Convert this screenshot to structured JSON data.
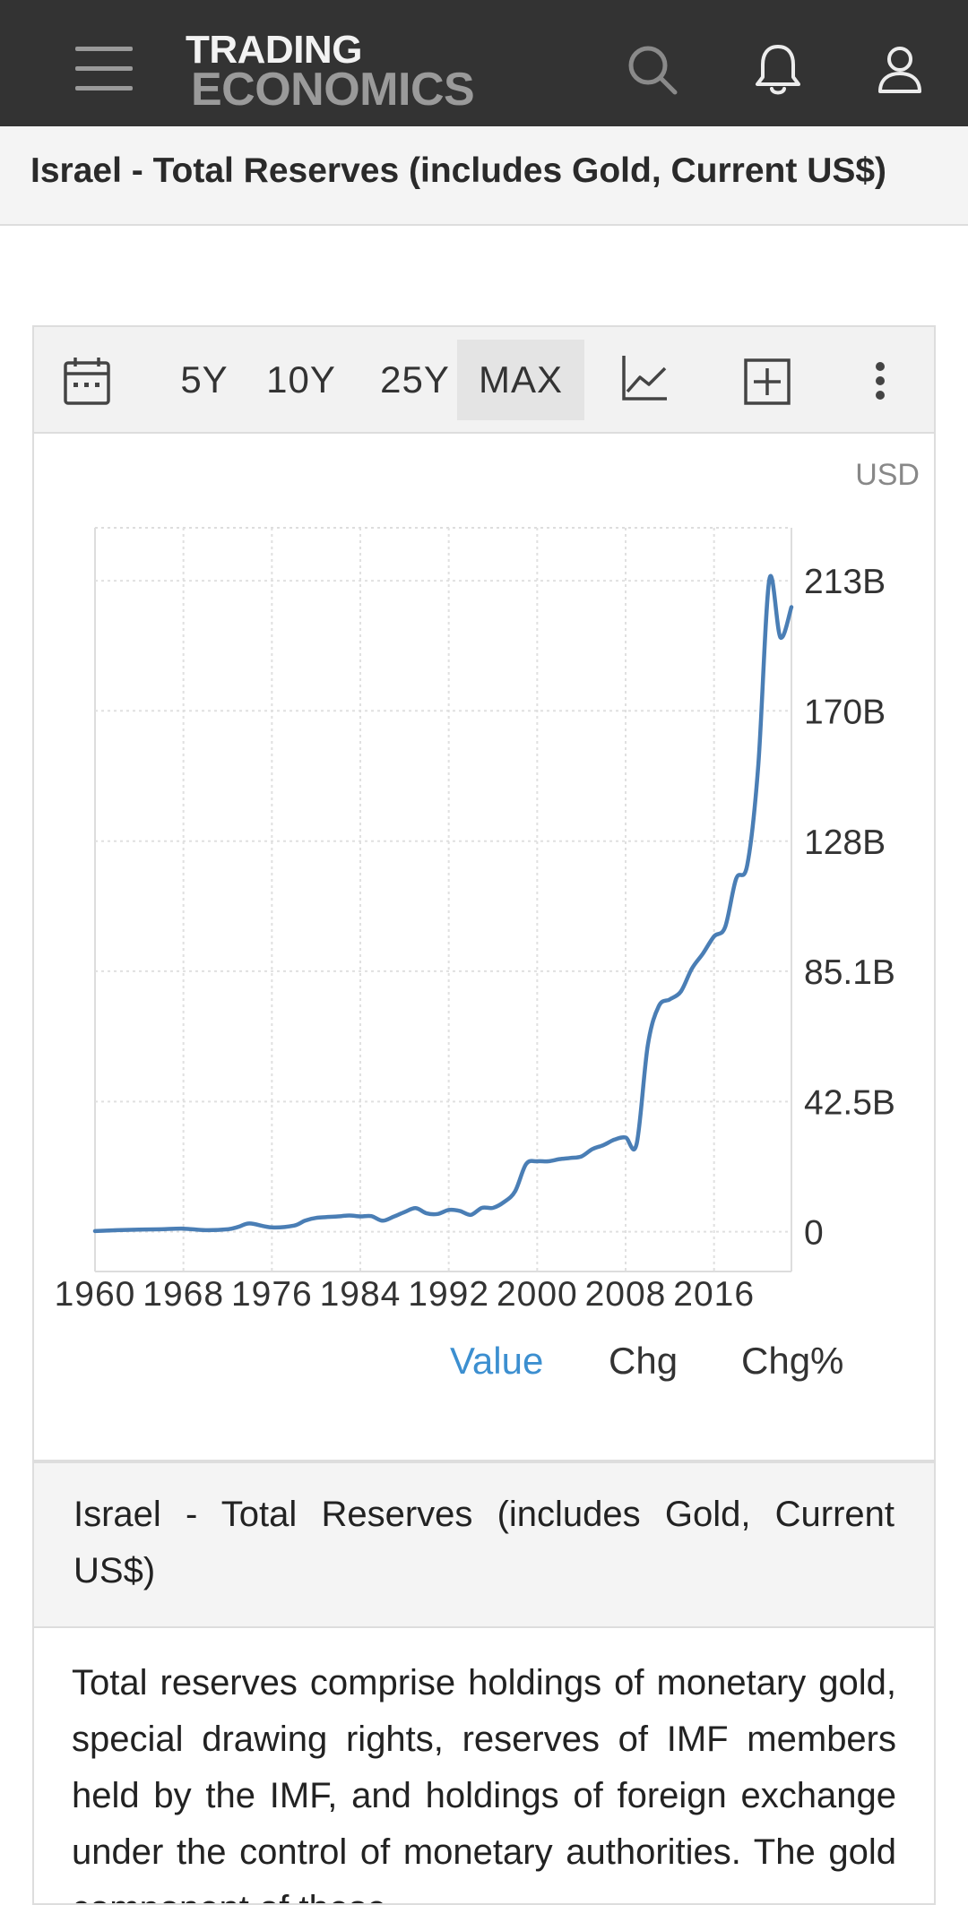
{
  "header": {
    "logo_line1": "TRADING",
    "logo_line2": "ECONOMICS"
  },
  "page_title": "Israel - Total Reserves (includes Gold, Current US$)",
  "toolbar": {
    "ranges": [
      "5Y",
      "10Y",
      "25Y",
      "MAX"
    ],
    "active_range": "MAX"
  },
  "chart_unit": "USD",
  "chart_data": {
    "type": "line",
    "title": "",
    "xlabel": "",
    "ylabel": "",
    "x_tick_labels": [
      "1960",
      "1968",
      "1976",
      "1984",
      "1992",
      "2000",
      "2008",
      "2016"
    ],
    "y_tick_labels": [
      "213B",
      "170B",
      "128B",
      "85.1B",
      "42.5B",
      "0"
    ],
    "y_tick_values": [
      212.7,
      170.2,
      127.6,
      85.1,
      42.5,
      0
    ],
    "xlim": [
      1960,
      2023
    ],
    "ylim": [
      -13,
      230
    ],
    "grid": true,
    "line_color": "#4a7eb5",
    "series": [
      {
        "name": "",
        "x": [
          1960,
          1962,
          1964,
          1966,
          1968,
          1970,
          1972,
          1973,
          1974,
          1976,
          1978,
          1979,
          1980,
          1982,
          1983,
          1984,
          1985,
          1986,
          1987,
          1988,
          1989,
          1990,
          1991,
          1992,
          1993,
          1994,
          1995,
          1996,
          1997,
          1998,
          1999,
          2000,
          2001,
          2002,
          2003,
          2004,
          2005,
          2006,
          2007,
          2008,
          2009,
          2010,
          2011,
          2012,
          2013,
          2014,
          2015,
          2016,
          2017,
          2018,
          2019,
          2020,
          2021,
          2022,
          2023
        ],
        "y": [
          0.2,
          0.5,
          0.7,
          0.8,
          1.0,
          0.5,
          0.8,
          1.6,
          2.7,
          1.4,
          2.0,
          3.6,
          4.5,
          5.0,
          5.3,
          5.0,
          5.1,
          3.6,
          4.9,
          6.4,
          7.7,
          6.0,
          5.8,
          7.1,
          6.8,
          5.5,
          7.8,
          7.8,
          9.7,
          13.2,
          22.1,
          23.0,
          23.0,
          23.7,
          24.1,
          24.6,
          27.0,
          28.3,
          30.1,
          30.8,
          28.7,
          60.8,
          73.7,
          75.9,
          78.5,
          86.0,
          90.9,
          96.5,
          99.5,
          115.3,
          119.8,
          152.3,
          213.0,
          194.2,
          204.1
        ]
      }
    ]
  },
  "legend_tabs": [
    "Value",
    "Chg",
    "Chg%"
  ],
  "active_tab": "Value",
  "info": {
    "heading": "Israel - Total Reserves (includes Gold, Current US$)",
    "body": "Total reserves comprise holdings of monetary gold, special drawing rights, reserves of IMF members held by the IMF, and holdings of foreign exchange under the control of monetary authorities. The gold component of these"
  },
  "colors": {
    "header_bg": "#333333",
    "accent": "#3c8fd0",
    "line": "#4a7eb5"
  },
  "icons": [
    "menu-icon",
    "search-icon",
    "bell-icon",
    "user-icon",
    "calendar-icon",
    "line-chart-icon",
    "add-box-icon",
    "more-vertical-icon"
  ]
}
